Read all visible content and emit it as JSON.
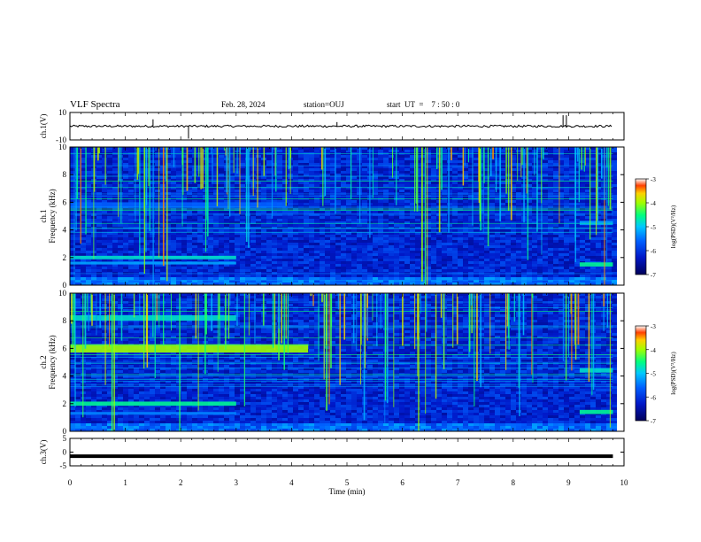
{
  "header": {
    "title": "VLF Spectra",
    "date": "Feb. 28, 2024",
    "station": "station=OUJ",
    "start_label": "start  UT  =    7 : 50 : 0"
  },
  "colorbar": {
    "label": "log(PSD)(V²/Hz)",
    "ticks": [
      "-3",
      "-4",
      "-5",
      "-6",
      "-7"
    ],
    "stops": [
      "#ffffff",
      "#c80000",
      "#ff8000",
      "#ffff00",
      "#00ff60",
      "#00c8ff",
      "#0040ff",
      "#00005a"
    ]
  },
  "chart_data": [
    {
      "type": "line",
      "panel": "ch1 waveform",
      "ylabel": "ch.1(V)",
      "ylim": [
        -10,
        10
      ],
      "y_ticks": [
        "10",
        "-10"
      ],
      "xlim": [
        0,
        10
      ],
      "baseline_v": 0.0,
      "spikes": [
        {
          "t": 1.5,
          "v": 5
        },
        {
          "t": 2.14,
          "v": -9
        },
        {
          "t": 4.82,
          "v": 3
        },
        {
          "t": 8.9,
          "v": 8
        },
        {
          "t": 8.96,
          "v": 8
        }
      ]
    },
    {
      "type": "heatmap",
      "panel": "ch1 spectrogram",
      "ylabel": "ch.1  Frequency (kHz)",
      "ylim": [
        0,
        10
      ],
      "y_ticks": [
        "0",
        "2",
        "4",
        "6",
        "8",
        "10"
      ],
      "xlim": [
        0,
        10
      ],
      "bands": [
        {
          "t0": 0,
          "t1": 3.0,
          "f": 2.0,
          "width": 0.25,
          "level": 0.55
        },
        {
          "t0": 0,
          "t1": 3.0,
          "f": 1.6,
          "width": 0.2,
          "level": 0.45
        },
        {
          "t0": 0,
          "t1": 3.9,
          "f": 5.8,
          "width": 0.4,
          "level": 0.35
        },
        {
          "t0": 9.2,
          "t1": 9.8,
          "f": 1.5,
          "width": 0.3,
          "level": 0.6
        },
        {
          "t0": 9.2,
          "t1": 9.8,
          "f": 4.5,
          "width": 0.3,
          "level": 0.45
        }
      ]
    },
    {
      "type": "heatmap",
      "panel": "ch2 spectrogram",
      "ylabel": "ch.2  Frequency (kHz)",
      "ylim": [
        0,
        10
      ],
      "y_ticks": [
        "0",
        "2",
        "4",
        "6",
        "8",
        "10"
      ],
      "xlim": [
        0,
        10
      ],
      "bands": [
        {
          "t0": 0,
          "t1": 4.3,
          "f": 6.0,
          "width": 0.6,
          "level": 0.75
        },
        {
          "t0": 0,
          "t1": 3.0,
          "f": 8.2,
          "width": 0.4,
          "level": 0.55
        },
        {
          "t0": 0,
          "t1": 3.0,
          "f": 2.0,
          "width": 0.3,
          "level": 0.6
        },
        {
          "t0": 0,
          "t1": 3.0,
          "f": 1.3,
          "width": 0.2,
          "level": 0.4
        },
        {
          "t0": 9.2,
          "t1": 9.8,
          "f": 1.4,
          "width": 0.3,
          "level": 0.6
        },
        {
          "t0": 9.2,
          "t1": 9.8,
          "f": 4.4,
          "width": 0.3,
          "level": 0.55
        }
      ]
    },
    {
      "type": "line",
      "panel": "ch3 waveform",
      "ylabel": "ch.3(V)",
      "ylim": [
        -5,
        5
      ],
      "y_ticks": [
        "5",
        "0",
        "-5"
      ],
      "xlim": [
        0,
        10
      ],
      "constant_v": -1.5
    }
  ],
  "x_axis": {
    "label": "Time  (min)",
    "ticks": [
      "0",
      "1",
      "2",
      "3",
      "4",
      "5",
      "6",
      "7",
      "8",
      "9",
      "10"
    ]
  }
}
